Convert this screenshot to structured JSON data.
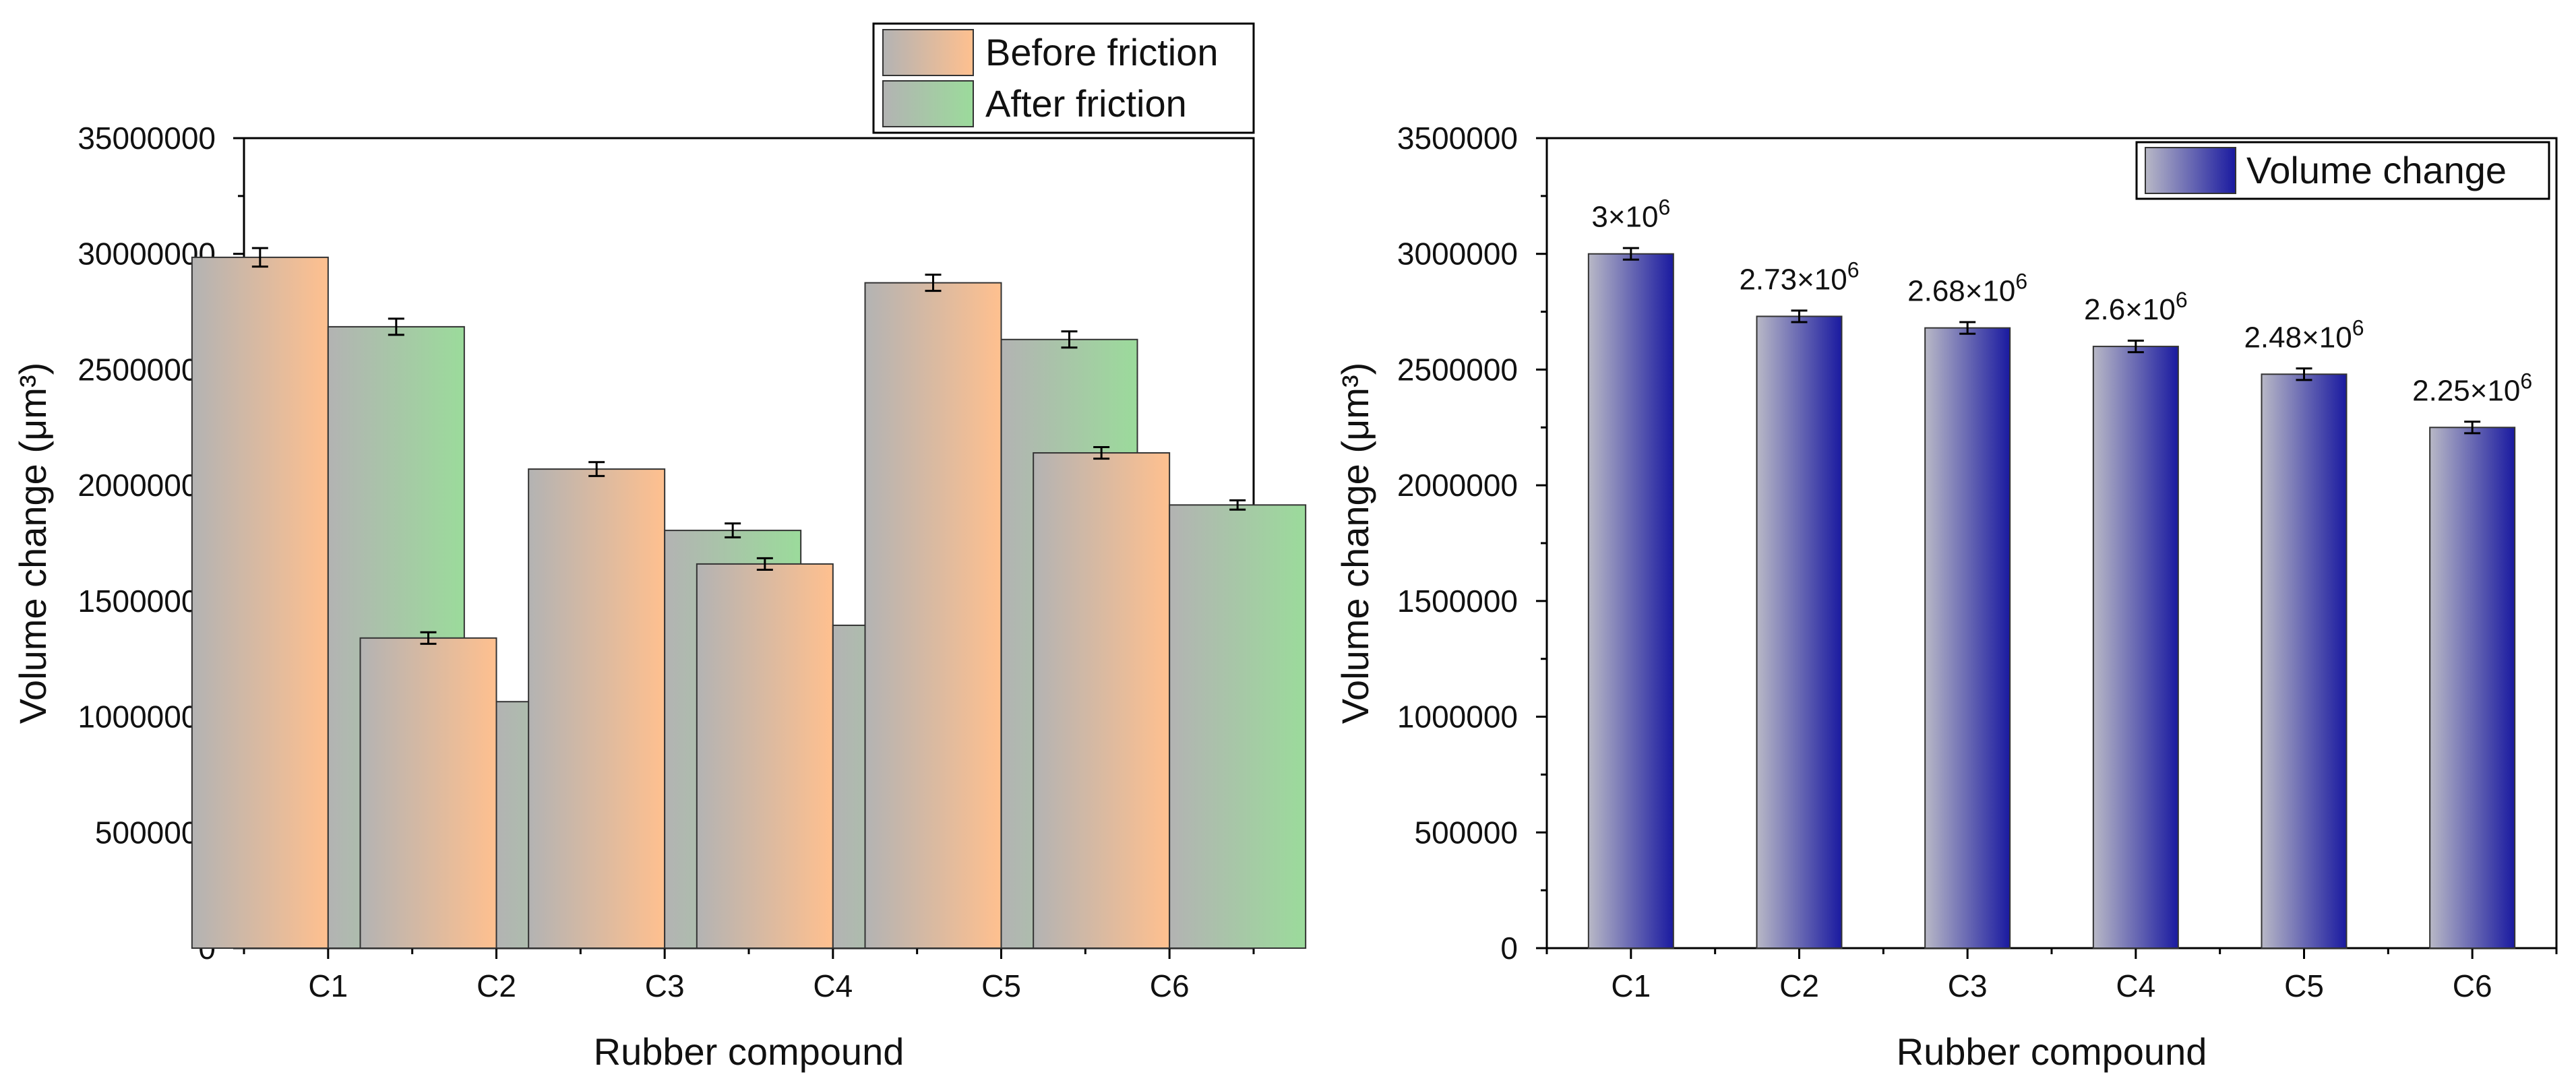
{
  "chart_data": [
    {
      "type": "bar",
      "categories": [
        "C1",
        "C2",
        "C3",
        "C4",
        "C5",
        "C6"
      ],
      "series": [
        {
          "name": "Before friction",
          "values": [
            29850000,
            13400000,
            20700000,
            16600000,
            28750000,
            21400000
          ],
          "errors": [
            400000,
            250000,
            300000,
            250000,
            350000,
            250000
          ],
          "color_from": "#b3b3b3",
          "color_to": "#ffc08f"
        },
        {
          "name": "After friction",
          "values": [
            26850000,
            10650000,
            18050000,
            13950000,
            26300000,
            19150000
          ],
          "errors": [
            350000,
            200000,
            300000,
            300000,
            350000,
            200000
          ],
          "color_from": "#b3b3b3",
          "color_to": "#9bdb9b"
        }
      ],
      "xlabel": "Rubber compound",
      "ylabel": "Volume change (μm³)",
      "ylim": [
        0,
        35000000
      ],
      "yticks": [
        "0",
        "5000000",
        "10000000",
        "15000000",
        "20000000",
        "25000000",
        "30000000",
        "35000000"
      ],
      "grid": false,
      "legend": "top-right, outside plot"
    },
    {
      "type": "bar",
      "categories": [
        "C1",
        "C2",
        "C3",
        "C4",
        "C5",
        "C6"
      ],
      "series": [
        {
          "name": "Volume change",
          "values": [
            3000000,
            2730000,
            2680000,
            2600000,
            2480000,
            2250000
          ],
          "errors": [
            25000,
            25000,
            25000,
            25000,
            25000,
            25000
          ],
          "color_from": "#b8b8c6",
          "color_to": "#1a1aa0"
        }
      ],
      "data_labels": [
        {
          "base": "3×10",
          "exp": "6"
        },
        {
          "base": "2.73×10",
          "exp": "6"
        },
        {
          "base": "2.68×10",
          "exp": "6"
        },
        {
          "base": "2.6×10",
          "exp": "6"
        },
        {
          "base": "2.48×10",
          "exp": "6"
        },
        {
          "base": "2.25×10",
          "exp": "6"
        }
      ],
      "xlabel": "Rubber compound",
      "ylabel": "Volume change (μm³)",
      "ylim": [
        0,
        3500000
      ],
      "yticks": [
        "0",
        "500000",
        "1000000",
        "1500000",
        "2000000",
        "2500000",
        "3000000",
        "3500000"
      ],
      "grid": false,
      "legend": "top-right, inside plot"
    }
  ]
}
